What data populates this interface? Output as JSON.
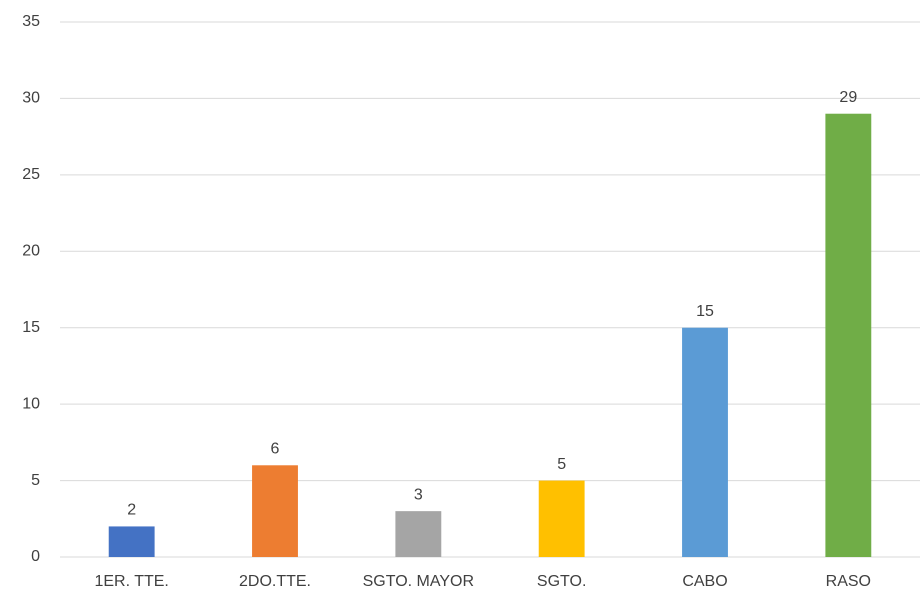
{
  "chart_data": {
    "type": "bar",
    "categories": [
      "1ER. TTE.",
      "2DO.TTE.",
      "SGTO. MAYOR",
      "SGTO.",
      "CABO",
      "RASO"
    ],
    "values": [
      2,
      6,
      3,
      5,
      15,
      29
    ],
    "colors": [
      "#4472c4",
      "#ed7d31",
      "#a5a5a5",
      "#ffc000",
      "#5b9bd5",
      "#70ad47"
    ],
    "ylim": [
      0,
      35
    ],
    "yticks": [
      0,
      5,
      10,
      15,
      20,
      25,
      30,
      35
    ],
    "grid": true,
    "data_labels": true
  }
}
